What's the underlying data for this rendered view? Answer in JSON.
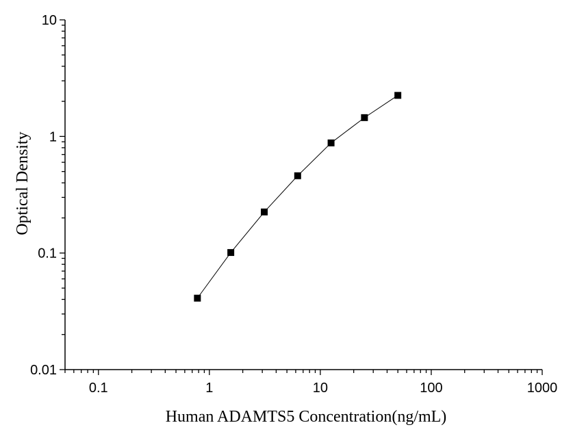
{
  "chart_data": {
    "type": "scatter",
    "title": "",
    "xlabel": "Human ADAMTS5 Concentration(ng/mL)",
    "ylabel": "Optical Density",
    "x_scale": "log",
    "y_scale": "log",
    "xlim": [
      0.05,
      1000
    ],
    "ylim": [
      0.01,
      10
    ],
    "x_ticks": [
      "0.1",
      "1",
      "10",
      "100",
      "1000"
    ],
    "y_ticks": [
      "0.01",
      "0.1",
      "1",
      "10"
    ],
    "grid": false,
    "legend": "none",
    "series": [
      {
        "x": [
          0.78,
          1.56,
          3.125,
          6.25,
          12.5,
          25,
          50
        ],
        "y": [
          0.041,
          0.101,
          0.225,
          0.46,
          0.88,
          1.45,
          2.25
        ],
        "marker": "square",
        "line": true,
        "color": "#000000"
      }
    ]
  }
}
